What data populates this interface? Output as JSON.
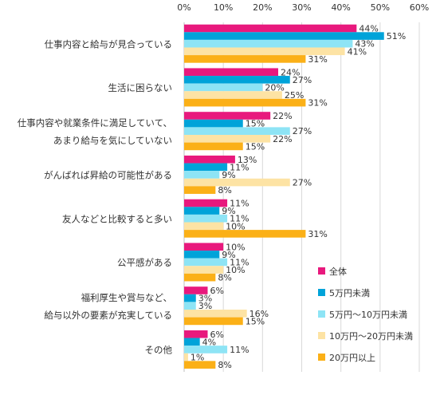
{
  "chart_data": {
    "type": "bar",
    "orientation": "horizontal",
    "categories": [
      [
        "仕事内容と給与が見合っている"
      ],
      [
        "生活に困らない"
      ],
      [
        "仕事内容や就業条件に満足していて、",
        "あまり給与を気にしていない"
      ],
      [
        "がんばれば昇給の可能性がある"
      ],
      [
        "友人などと比較すると多い"
      ],
      [
        "公平感がある"
      ],
      [
        "福利厚生や賞与など、",
        "給与以外の要素が充実している"
      ],
      [
        "その他"
      ]
    ],
    "series": [
      {
        "name": "全体",
        "color": "#e8197d",
        "values": [
          44,
          24,
          22,
          13,
          11,
          10,
          6,
          6
        ]
      },
      {
        "name": "5万円未満",
        "color": "#00a3d9",
        "values": [
          51,
          27,
          15,
          11,
          9,
          9,
          3,
          4
        ]
      },
      {
        "name": "5万円～10万円未満",
        "color": "#8ee4f5",
        "values": [
          43,
          20,
          27,
          9,
          11,
          11,
          3,
          11
        ]
      },
      {
        "name": "10万円～20万円未満",
        "color": "#fde3a4",
        "values": [
          41,
          25,
          22,
          27,
          10,
          10,
          16,
          1
        ]
      },
      {
        "name": "20万円以上",
        "color": "#fbb017",
        "values": [
          31,
          31,
          15,
          8,
          31,
          8,
          15,
          8
        ]
      }
    ],
    "xlim": [
      0,
      60
    ],
    "xticks": [
      "0%",
      "10%",
      "20%",
      "30%",
      "40%",
      "50%",
      "60%"
    ],
    "value_suffix": "%",
    "grid": true,
    "legend_position": "lower-right"
  }
}
